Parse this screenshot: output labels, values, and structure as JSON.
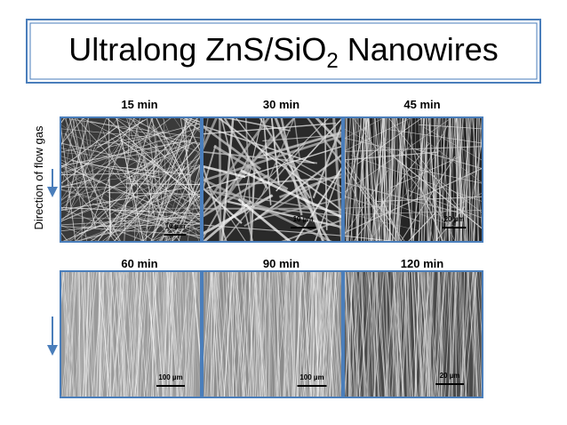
{
  "header": {
    "title_main": "Ultralong ZnS/SiO",
    "title_sub": "2",
    "title_end": " Nanowires"
  },
  "side_label": "Direction of flow gas",
  "panels": [
    {
      "label": "15 min",
      "scale": "10 µm"
    },
    {
      "label": "30 min",
      "scale": "10 µm"
    },
    {
      "label": "45 min",
      "scale": "20 µm"
    },
    {
      "label": "60 min",
      "scale": "100 µm"
    },
    {
      "label": "90 min",
      "scale": "100 µm"
    },
    {
      "label": "120 min",
      "scale": "20 µm"
    }
  ]
}
